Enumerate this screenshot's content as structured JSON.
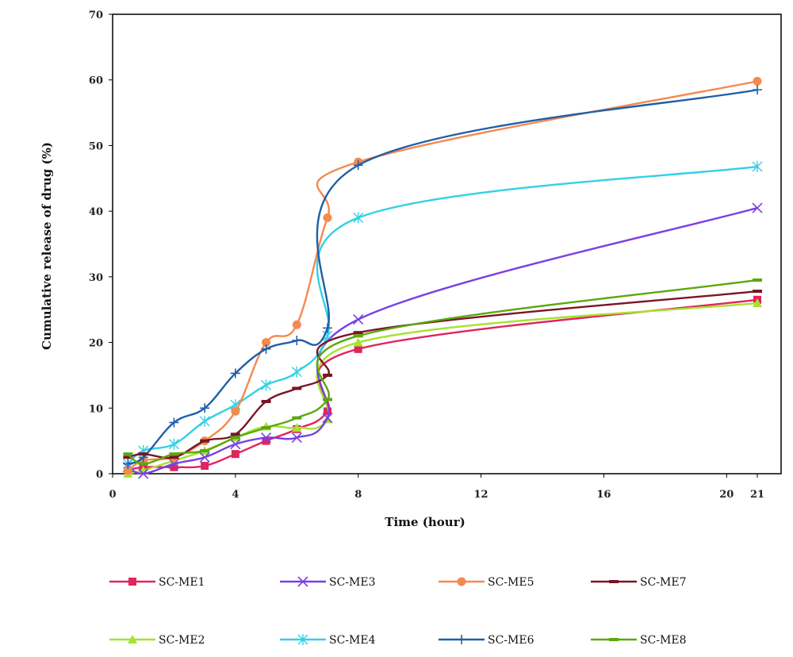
{
  "chart_data": {
    "type": "line",
    "xlabel": "Time (hour)",
    "ylabel": "Cumulative release of drug (%)",
    "xlim": [
      0,
      21
    ],
    "ylim": [
      0,
      70
    ],
    "x_ticks": [
      0,
      4,
      8,
      12,
      16,
      20,
      21
    ],
    "x_tick_labels": [
      "0",
      "4",
      "8",
      "12",
      "16",
      "20",
      "21"
    ],
    "y_ticks": [
      0,
      10,
      20,
      30,
      40,
      50,
      60,
      70
    ],
    "y_tick_labels": [
      "0",
      "10",
      "20",
      "30",
      "40",
      "50",
      "60",
      "70"
    ],
    "grid": false,
    "legend_position": "bottom",
    "series": [
      {
        "name": "SC-ME1",
        "color": "#e0245e",
        "marker": "square",
        "points": [
          [
            0.5,
            0.5
          ],
          [
            1,
            1
          ],
          [
            2,
            1
          ],
          [
            3,
            1.2
          ],
          [
            4,
            3
          ],
          [
            5,
            5
          ],
          [
            6,
            6.8
          ],
          [
            7,
            9.5
          ],
          [
            8,
            19
          ],
          [
            21,
            26.5
          ]
        ]
      },
      {
        "name": "SC-ME2",
        "color": "#a6e22e",
        "marker": "triangle",
        "points": [
          [
            0.5,
            0
          ],
          [
            1,
            0.5
          ],
          [
            2,
            2
          ],
          [
            3,
            3.5
          ],
          [
            4,
            5.5
          ],
          [
            5,
            7.2
          ],
          [
            6,
            7
          ],
          [
            7,
            8.3
          ],
          [
            8,
            20
          ],
          [
            21,
            26
          ]
        ]
      },
      {
        "name": "SC-ME3",
        "color": "#7b3fe4",
        "marker": "x",
        "points": [
          [
            0.5,
            1
          ],
          [
            1,
            0
          ],
          [
            2,
            1.5
          ],
          [
            3,
            2.5
          ],
          [
            4,
            4.5
          ],
          [
            5,
            5.5
          ],
          [
            6,
            5.5
          ],
          [
            7,
            8.5
          ],
          [
            8,
            23.5
          ],
          [
            21,
            40.5
          ]
        ]
      },
      {
        "name": "SC-ME4",
        "color": "#33d0e6",
        "marker": "asterisk",
        "points": [
          [
            0.5,
            1.5
          ],
          [
            1,
            3.5
          ],
          [
            2,
            4.5
          ],
          [
            3,
            8
          ],
          [
            4,
            10.5
          ],
          [
            5,
            13.5
          ],
          [
            6,
            15.5
          ],
          [
            7,
            21
          ],
          [
            8,
            39
          ],
          [
            21,
            46.8
          ]
        ]
      },
      {
        "name": "SC-ME5",
        "color": "#f5894f",
        "marker": "circle",
        "points": [
          [
            0.5,
            0.5
          ],
          [
            1,
            2
          ],
          [
            2,
            2.5
          ],
          [
            3,
            5
          ],
          [
            4,
            9.5
          ],
          [
            5,
            20
          ],
          [
            6,
            22.7
          ],
          [
            7,
            39
          ],
          [
            8,
            47.5
          ],
          [
            21,
            59.8
          ]
        ]
      },
      {
        "name": "SC-ME6",
        "color": "#1e5fa8",
        "marker": "plus",
        "points": [
          [
            0.5,
            1.5
          ],
          [
            1,
            2.5
          ],
          [
            2,
            7.8
          ],
          [
            3,
            10
          ],
          [
            4,
            15.3
          ],
          [
            5,
            19
          ],
          [
            6,
            20.3
          ],
          [
            7,
            22.2
          ],
          [
            8,
            47
          ],
          [
            21,
            58.5
          ]
        ]
      },
      {
        "name": "SC-ME7",
        "color": "#7a1526",
        "marker": "dash",
        "points": [
          [
            0.5,
            2.5
          ],
          [
            1,
            3
          ],
          [
            2,
            2.5
          ],
          [
            3,
            5
          ],
          [
            4,
            6
          ],
          [
            5,
            11
          ],
          [
            6,
            13
          ],
          [
            7,
            15
          ],
          [
            8,
            21.5
          ],
          [
            21,
            27.8
          ]
        ]
      },
      {
        "name": "SC-ME8",
        "color": "#5aa80e",
        "marker": "dash",
        "points": [
          [
            0.5,
            3
          ],
          [
            1,
            1.5
          ],
          [
            2,
            3
          ],
          [
            3,
            3.5
          ],
          [
            4,
            5.5
          ],
          [
            5,
            7
          ],
          [
            6,
            8.5
          ],
          [
            7,
            11.3
          ],
          [
            8,
            21
          ],
          [
            21,
            29.5
          ]
        ]
      }
    ]
  },
  "legend": {
    "row1": [
      "SC-ME1",
      "SC-ME3",
      "SC-ME5",
      "SC-ME7"
    ],
    "row2": [
      "SC-ME2",
      "SC-ME4",
      "SC-ME6",
      "SC-ME8"
    ]
  }
}
